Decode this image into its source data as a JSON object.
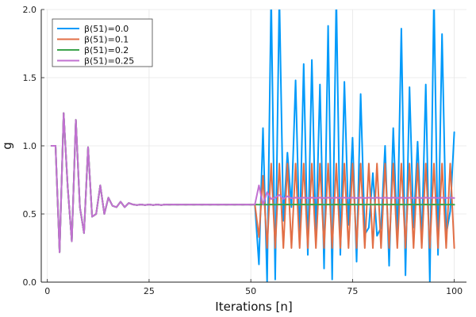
{
  "chart_data": {
    "type": "line",
    "title": "",
    "xlabel": "Iterations [n]",
    "ylabel": "g",
    "xlim": [
      1,
      100
    ],
    "ylim": [
      0,
      2
    ],
    "xticks": [
      0,
      25,
      50,
      75,
      100
    ],
    "xtick_labels": [
      "0",
      "25",
      "50",
      "75",
      "100"
    ],
    "yticks": [
      0.0,
      0.5,
      1.0,
      1.5,
      2.0
    ],
    "ytick_labels": [
      "0.0",
      "0.5",
      "1.0",
      "1.5",
      "2.0"
    ],
    "grid": true,
    "legend_position": "top-left",
    "x": [
      1,
      2,
      3,
      4,
      5,
      6,
      7,
      8,
      9,
      10,
      11,
      12,
      13,
      14,
      15,
      16,
      17,
      18,
      19,
      20,
      21,
      22,
      23,
      24,
      25,
      26,
      27,
      28,
      29,
      30,
      31,
      32,
      33,
      34,
      35,
      36,
      37,
      38,
      39,
      40,
      41,
      42,
      43,
      44,
      45,
      46,
      47,
      48,
      49,
      50,
      51,
      52,
      53,
      54,
      55,
      56,
      57,
      58,
      59,
      60,
      61,
      62,
      63,
      64,
      65,
      66,
      67,
      68,
      69,
      70,
      71,
      72,
      73,
      74,
      75,
      76,
      77,
      78,
      79,
      80,
      81,
      82,
      83,
      84,
      85,
      86,
      87,
      88,
      89,
      90,
      91,
      92,
      93,
      94,
      95,
      96,
      97,
      98,
      99,
      100
    ],
    "series": [
      {
        "name": "β(51)=0.0",
        "color": "#009AFA",
        "values": [
          1.0,
          1.0,
          0.22,
          1.24,
          0.7,
          0.3,
          1.19,
          0.55,
          0.36,
          0.99,
          0.48,
          0.5,
          0.71,
          0.5,
          0.62,
          0.56,
          0.55,
          0.59,
          0.55,
          0.58,
          0.57,
          0.565,
          0.57,
          0.565,
          0.57,
          0.565,
          0.57,
          0.565,
          0.57,
          0.568,
          0.57,
          0.568,
          0.57,
          0.568,
          0.57,
          0.568,
          0.57,
          0.568,
          0.57,
          0.568,
          0.57,
          0.568,
          0.57,
          0.568,
          0.57,
          0.568,
          0.57,
          0.568,
          0.57,
          0.568,
          0.57,
          0.13,
          1.13,
          0.0,
          2.1,
          0.02,
          2.1,
          0.45,
          0.95,
          0.55,
          1.48,
          0.3,
          1.6,
          0.2,
          1.63,
          0.32,
          1.45,
          0.1,
          1.88,
          0.02,
          2.1,
          0.2,
          1.47,
          0.42,
          1.06,
          0.15,
          1.38,
          0.35,
          0.4,
          0.8,
          0.34,
          0.4,
          1.0,
          0.12,
          1.13,
          0.33,
          1.86,
          0.05,
          1.43,
          0.4,
          1.03,
          0.3,
          1.45,
          0.0,
          2.1,
          0.2,
          1.82,
          0.35,
          0.52,
          1.1
        ]
      },
      {
        "name": "β(51)=0.1",
        "color": "#E26F46",
        "values": [
          1.0,
          1.0,
          0.22,
          1.24,
          0.7,
          0.3,
          1.19,
          0.55,
          0.36,
          0.99,
          0.48,
          0.5,
          0.71,
          0.5,
          0.62,
          0.56,
          0.55,
          0.59,
          0.55,
          0.58,
          0.57,
          0.565,
          0.57,
          0.565,
          0.57,
          0.565,
          0.57,
          0.565,
          0.57,
          0.568,
          0.57,
          0.568,
          0.57,
          0.568,
          0.57,
          0.568,
          0.57,
          0.568,
          0.57,
          0.568,
          0.57,
          0.568,
          0.57,
          0.568,
          0.57,
          0.568,
          0.57,
          0.568,
          0.57,
          0.568,
          0.57,
          0.33,
          0.78,
          0.25,
          0.87,
          0.25,
          0.87,
          0.25,
          0.87,
          0.25,
          0.87,
          0.25,
          0.87,
          0.25,
          0.87,
          0.25,
          0.87,
          0.25,
          0.87,
          0.25,
          0.87,
          0.25,
          0.87,
          0.25,
          0.87,
          0.25,
          0.87,
          0.25,
          0.87,
          0.25,
          0.87,
          0.25,
          0.87,
          0.25,
          0.87,
          0.25,
          0.87,
          0.25,
          0.87,
          0.25,
          0.87,
          0.25,
          0.87,
          0.25,
          0.87,
          0.25,
          0.87,
          0.25,
          0.87,
          0.25
        ]
      },
      {
        "name": "β(51)=0.2",
        "color": "#3DA44D",
        "values": [
          1.0,
          1.0,
          0.22,
          1.24,
          0.7,
          0.3,
          1.19,
          0.55,
          0.36,
          0.99,
          0.48,
          0.5,
          0.71,
          0.5,
          0.62,
          0.56,
          0.55,
          0.59,
          0.55,
          0.58,
          0.57,
          0.565,
          0.57,
          0.565,
          0.57,
          0.565,
          0.57,
          0.565,
          0.57,
          0.568,
          0.57,
          0.568,
          0.57,
          0.568,
          0.57,
          0.568,
          0.57,
          0.568,
          0.57,
          0.568,
          0.57,
          0.568,
          0.57,
          0.568,
          0.57,
          0.568,
          0.57,
          0.568,
          0.57,
          0.568,
          0.57,
          0.568,
          0.57,
          0.568,
          0.57,
          0.568,
          0.57,
          0.568,
          0.57,
          0.568,
          0.57,
          0.568,
          0.57,
          0.568,
          0.57,
          0.568,
          0.57,
          0.568,
          0.57,
          0.568,
          0.57,
          0.568,
          0.57,
          0.568,
          0.57,
          0.568,
          0.57,
          0.568,
          0.57,
          0.568,
          0.57,
          0.568,
          0.57,
          0.568,
          0.57,
          0.568,
          0.57,
          0.568,
          0.57,
          0.568,
          0.57,
          0.568,
          0.57,
          0.568,
          0.57,
          0.568,
          0.57,
          0.568,
          0.57,
          0.568
        ]
      },
      {
        "name": "β(51)=0.25",
        "color": "#C271D2",
        "values": [
          1.0,
          1.0,
          0.22,
          1.24,
          0.7,
          0.3,
          1.19,
          0.55,
          0.36,
          0.99,
          0.48,
          0.5,
          0.71,
          0.5,
          0.62,
          0.56,
          0.55,
          0.59,
          0.55,
          0.58,
          0.57,
          0.565,
          0.57,
          0.565,
          0.57,
          0.565,
          0.57,
          0.565,
          0.57,
          0.568,
          0.57,
          0.568,
          0.57,
          0.568,
          0.57,
          0.568,
          0.57,
          0.568,
          0.57,
          0.568,
          0.57,
          0.568,
          0.57,
          0.568,
          0.57,
          0.568,
          0.57,
          0.568,
          0.57,
          0.568,
          0.57,
          0.71,
          0.57,
          0.66,
          0.61,
          0.62,
          0.64,
          0.61,
          0.63,
          0.615,
          0.62,
          0.617,
          0.62,
          0.617,
          0.62,
          0.617,
          0.62,
          0.617,
          0.62,
          0.617,
          0.62,
          0.617,
          0.62,
          0.617,
          0.62,
          0.617,
          0.62,
          0.617,
          0.62,
          0.617,
          0.62,
          0.617,
          0.62,
          0.617,
          0.62,
          0.617,
          0.62,
          0.617,
          0.62,
          0.617,
          0.62,
          0.617,
          0.62,
          0.617,
          0.62,
          0.617,
          0.62,
          0.617,
          0.62,
          0.617
        ]
      }
    ]
  }
}
